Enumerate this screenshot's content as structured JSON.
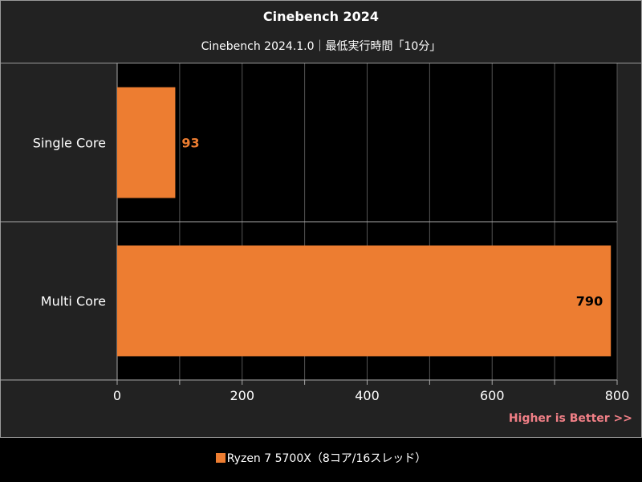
{
  "chart_data": {
    "type": "bar",
    "orientation": "horizontal",
    "title": "Cinebench 2024",
    "subtitle": "Cinebench 2024.1.0｜最低実行時間「10分」",
    "categories": [
      "Single Core",
      "Multi Core"
    ],
    "series": [
      {
        "name": "Ryzen 7 5700X（8コア/16スレッド）",
        "values": [
          93,
          790
        ],
        "color": "#ed7d31"
      }
    ],
    "data_labels": [
      "93",
      "790"
    ],
    "data_label_colors": [
      "#ed7d31",
      "#000000"
    ],
    "xlim": [
      0,
      800
    ],
    "xticks": [
      0,
      100,
      200,
      300,
      400,
      500,
      600,
      700,
      800
    ],
    "xtick_labels": [
      "0",
      "",
      "200",
      "",
      "400",
      "",
      "600",
      "",
      "800"
    ],
    "grid": true,
    "legend_position": "bottom",
    "annotation": "Higher is Better >>"
  }
}
